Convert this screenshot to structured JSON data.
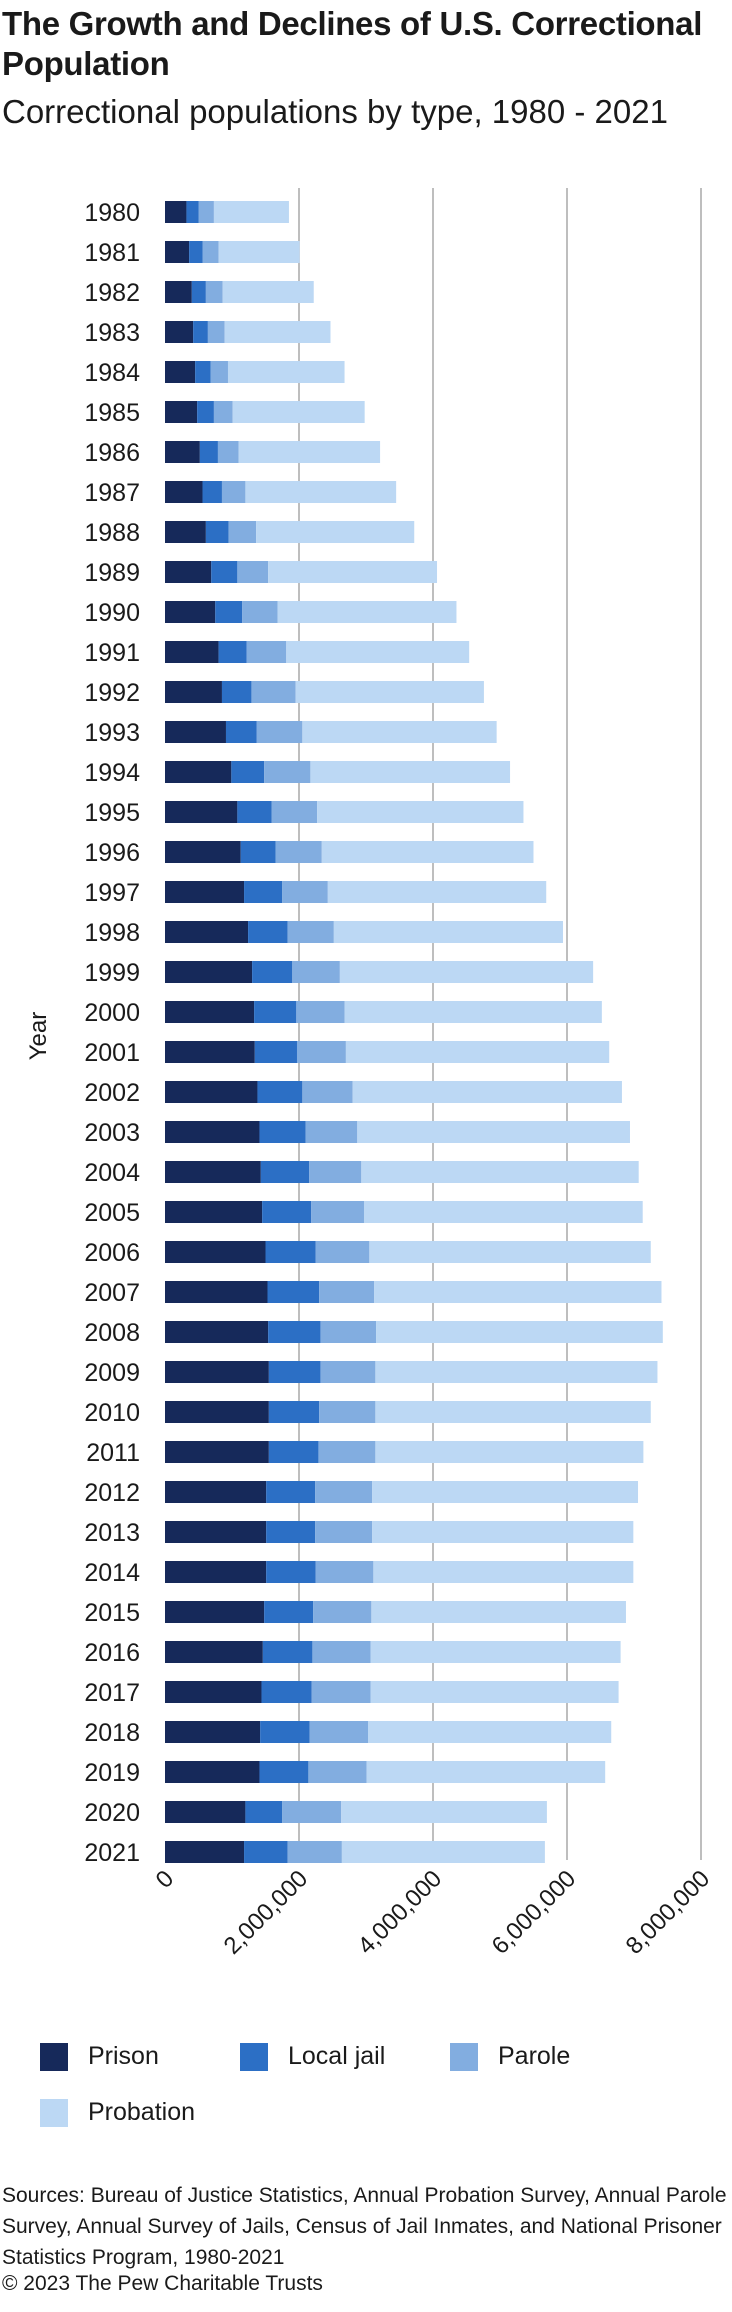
{
  "header": {
    "title": "The Growth and Declines of U.S. Correctional Population",
    "subtitle": "Correctional populations by type, 1980 - 2021"
  },
  "footer": {
    "sources": "Sources: Bureau of Justice Statistics, Annual Probation Survey, Annual Parole Survey, Annual Survey of Jails, Census of Jail Inmates, and National Prisoner Statistics Program, 1980-2021",
    "copyright": "© 2023 The Pew Charitable Trusts"
  },
  "chart_data": {
    "type": "bar",
    "orientation": "horizontal",
    "stacked": true,
    "ylabel": "Year",
    "xlabel": "",
    "xlim": [
      0,
      8000000
    ],
    "xticks": [
      0,
      2000000,
      4000000,
      6000000,
      8000000
    ],
    "xtick_labels": [
      "0",
      "2,000,000",
      "4,000,000",
      "6,000,000",
      "8,000,000"
    ],
    "grid": "vertical",
    "legend_position": "bottom",
    "categories": [
      "1980",
      "1981",
      "1982",
      "1983",
      "1984",
      "1985",
      "1986",
      "1987",
      "1988",
      "1989",
      "1990",
      "1991",
      "1992",
      "1993",
      "1994",
      "1995",
      "1996",
      "1997",
      "1998",
      "1999",
      "2000",
      "2001",
      "2002",
      "2003",
      "2004",
      "2005",
      "2006",
      "2007",
      "2008",
      "2009",
      "2010",
      "2011",
      "2012",
      "2013",
      "2014",
      "2015",
      "2016",
      "2017",
      "2018",
      "2019",
      "2020",
      "2021"
    ],
    "series": [
      {
        "name": "Prison",
        "color": "#16295a",
        "values": [
          320000,
          360000,
          400000,
          420000,
          450000,
          480000,
          520000,
          560000,
          610000,
          690000,
          750000,
          800000,
          850000,
          910000,
          990000,
          1080000,
          1130000,
          1180000,
          1240000,
          1300000,
          1330000,
          1340000,
          1380000,
          1410000,
          1430000,
          1450000,
          1500000,
          1530000,
          1540000,
          1550000,
          1550000,
          1550000,
          1510000,
          1510000,
          1510000,
          1480000,
          1460000,
          1440000,
          1420000,
          1410000,
          1200000,
          1180000
        ]
      },
      {
        "name": "Local jail",
        "color": "#2c6fc5",
        "values": [
          180000,
          200000,
          210000,
          220000,
          230000,
          250000,
          270000,
          290000,
          340000,
          390000,
          400000,
          420000,
          440000,
          460000,
          490000,
          510000,
          520000,
          570000,
          590000,
          600000,
          630000,
          630000,
          670000,
          690000,
          720000,
          730000,
          750000,
          770000,
          780000,
          770000,
          750000,
          740000,
          730000,
          730000,
          740000,
          730000,
          740000,
          750000,
          740000,
          730000,
          550000,
          650000
        ]
      },
      {
        "name": "Parole",
        "color": "#82ade0",
        "values": [
          230000,
          240000,
          250000,
          250000,
          260000,
          280000,
          310000,
          350000,
          410000,
          460000,
          530000,
          590000,
          660000,
          680000,
          690000,
          680000,
          690000,
          680000,
          690000,
          710000,
          720000,
          730000,
          750000,
          770000,
          780000,
          790000,
          800000,
          820000,
          830000,
          820000,
          840000,
          850000,
          850000,
          850000,
          860000,
          870000,
          870000,
          880000,
          870000,
          870000,
          880000,
          810000
        ]
      },
      {
        "name": "Probation",
        "color": "#bcd8f4",
        "values": [
          1120000,
          1210000,
          1360000,
          1580000,
          1740000,
          1970000,
          2110000,
          2250000,
          2360000,
          2520000,
          2670000,
          2730000,
          2810000,
          2900000,
          2980000,
          3080000,
          3160000,
          3260000,
          3420000,
          3780000,
          3840000,
          3930000,
          4020000,
          4070000,
          4140000,
          4160000,
          4200000,
          4290000,
          4280000,
          4210000,
          4110000,
          4000000,
          3970000,
          3900000,
          3880000,
          3800000,
          3730000,
          3700000,
          3630000,
          3560000,
          3070000,
          3030000
        ]
      }
    ]
  }
}
